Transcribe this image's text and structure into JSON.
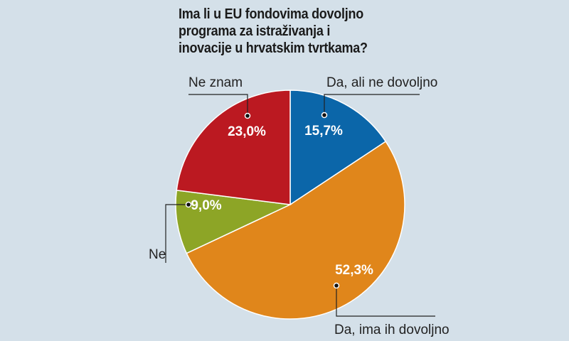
{
  "chart_data": {
    "type": "pie",
    "title": "Ima li u EU fondovima dovoljno programa za istraživanja i inovacije u hrvatskim tvrtkama?",
    "start": "top",
    "direction": "clockwise",
    "slices": [
      {
        "label": "Da, ali ne dovoljno",
        "value": 15.7,
        "value_label": "15,7%",
        "color": "#0b66a9"
      },
      {
        "label": "Da, ima ih dovoljno",
        "value": 52.3,
        "value_label": "52,3%",
        "color": "#e0861b"
      },
      {
        "label": "Ne",
        "value": 9.0,
        "value_label": "9,0%",
        "color": "#8da526"
      },
      {
        "label": "Ne znam",
        "value": 23.0,
        "value_label": "23,0%",
        "color": "#bb1921"
      }
    ]
  }
}
